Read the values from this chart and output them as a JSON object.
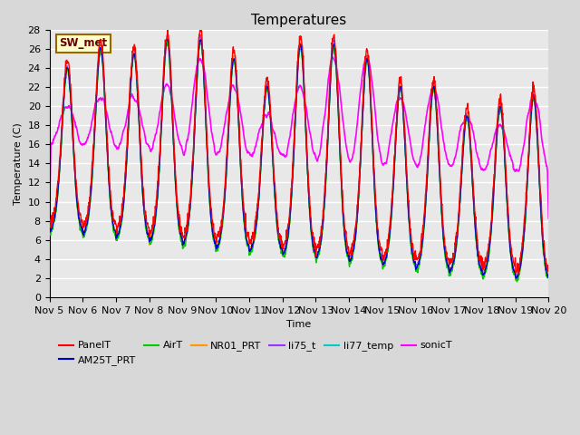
{
  "title": "Temperatures",
  "xlabel": "Time",
  "ylabel": "Temperature (C)",
  "ylim": [
    0,
    28
  ],
  "yticks": [
    0,
    2,
    4,
    6,
    8,
    10,
    12,
    14,
    16,
    18,
    20,
    22,
    24,
    26,
    28
  ],
  "xtick_labels": [
    "Nov 5",
    "Nov 6",
    "Nov 7",
    "Nov 8",
    "Nov 9",
    "Nov 10",
    "Nov 11",
    "Nov 12",
    "Nov 13",
    "Nov 14",
    "Nov 15",
    "Nov 16",
    "Nov 17",
    "Nov 18",
    "Nov 19",
    "Nov 20"
  ],
  "series_colors": {
    "PanelT": "#ff0000",
    "AM25T_PRT": "#0000cc",
    "AirT": "#00cc00",
    "NR01_PRT": "#ff9900",
    "li75_t": "#9933ff",
    "li77_temp": "#00cccc",
    "sonicT": "#ff00ff"
  },
  "series_lw": {
    "PanelT": 1.0,
    "AM25T_PRT": 1.0,
    "AirT": 1.0,
    "NR01_PRT": 1.0,
    "li75_t": 1.0,
    "li77_temp": 1.0,
    "sonicT": 1.2
  },
  "legend_label": "SW_met",
  "legend_facecolor": "#ffffcc",
  "legend_edgecolor": "#996600",
  "background_color": "#d8d8d8",
  "plot_bg_color": "#e8e8e8",
  "grid_color": "#ffffff",
  "title_fontsize": 11,
  "axis_fontsize": 8
}
